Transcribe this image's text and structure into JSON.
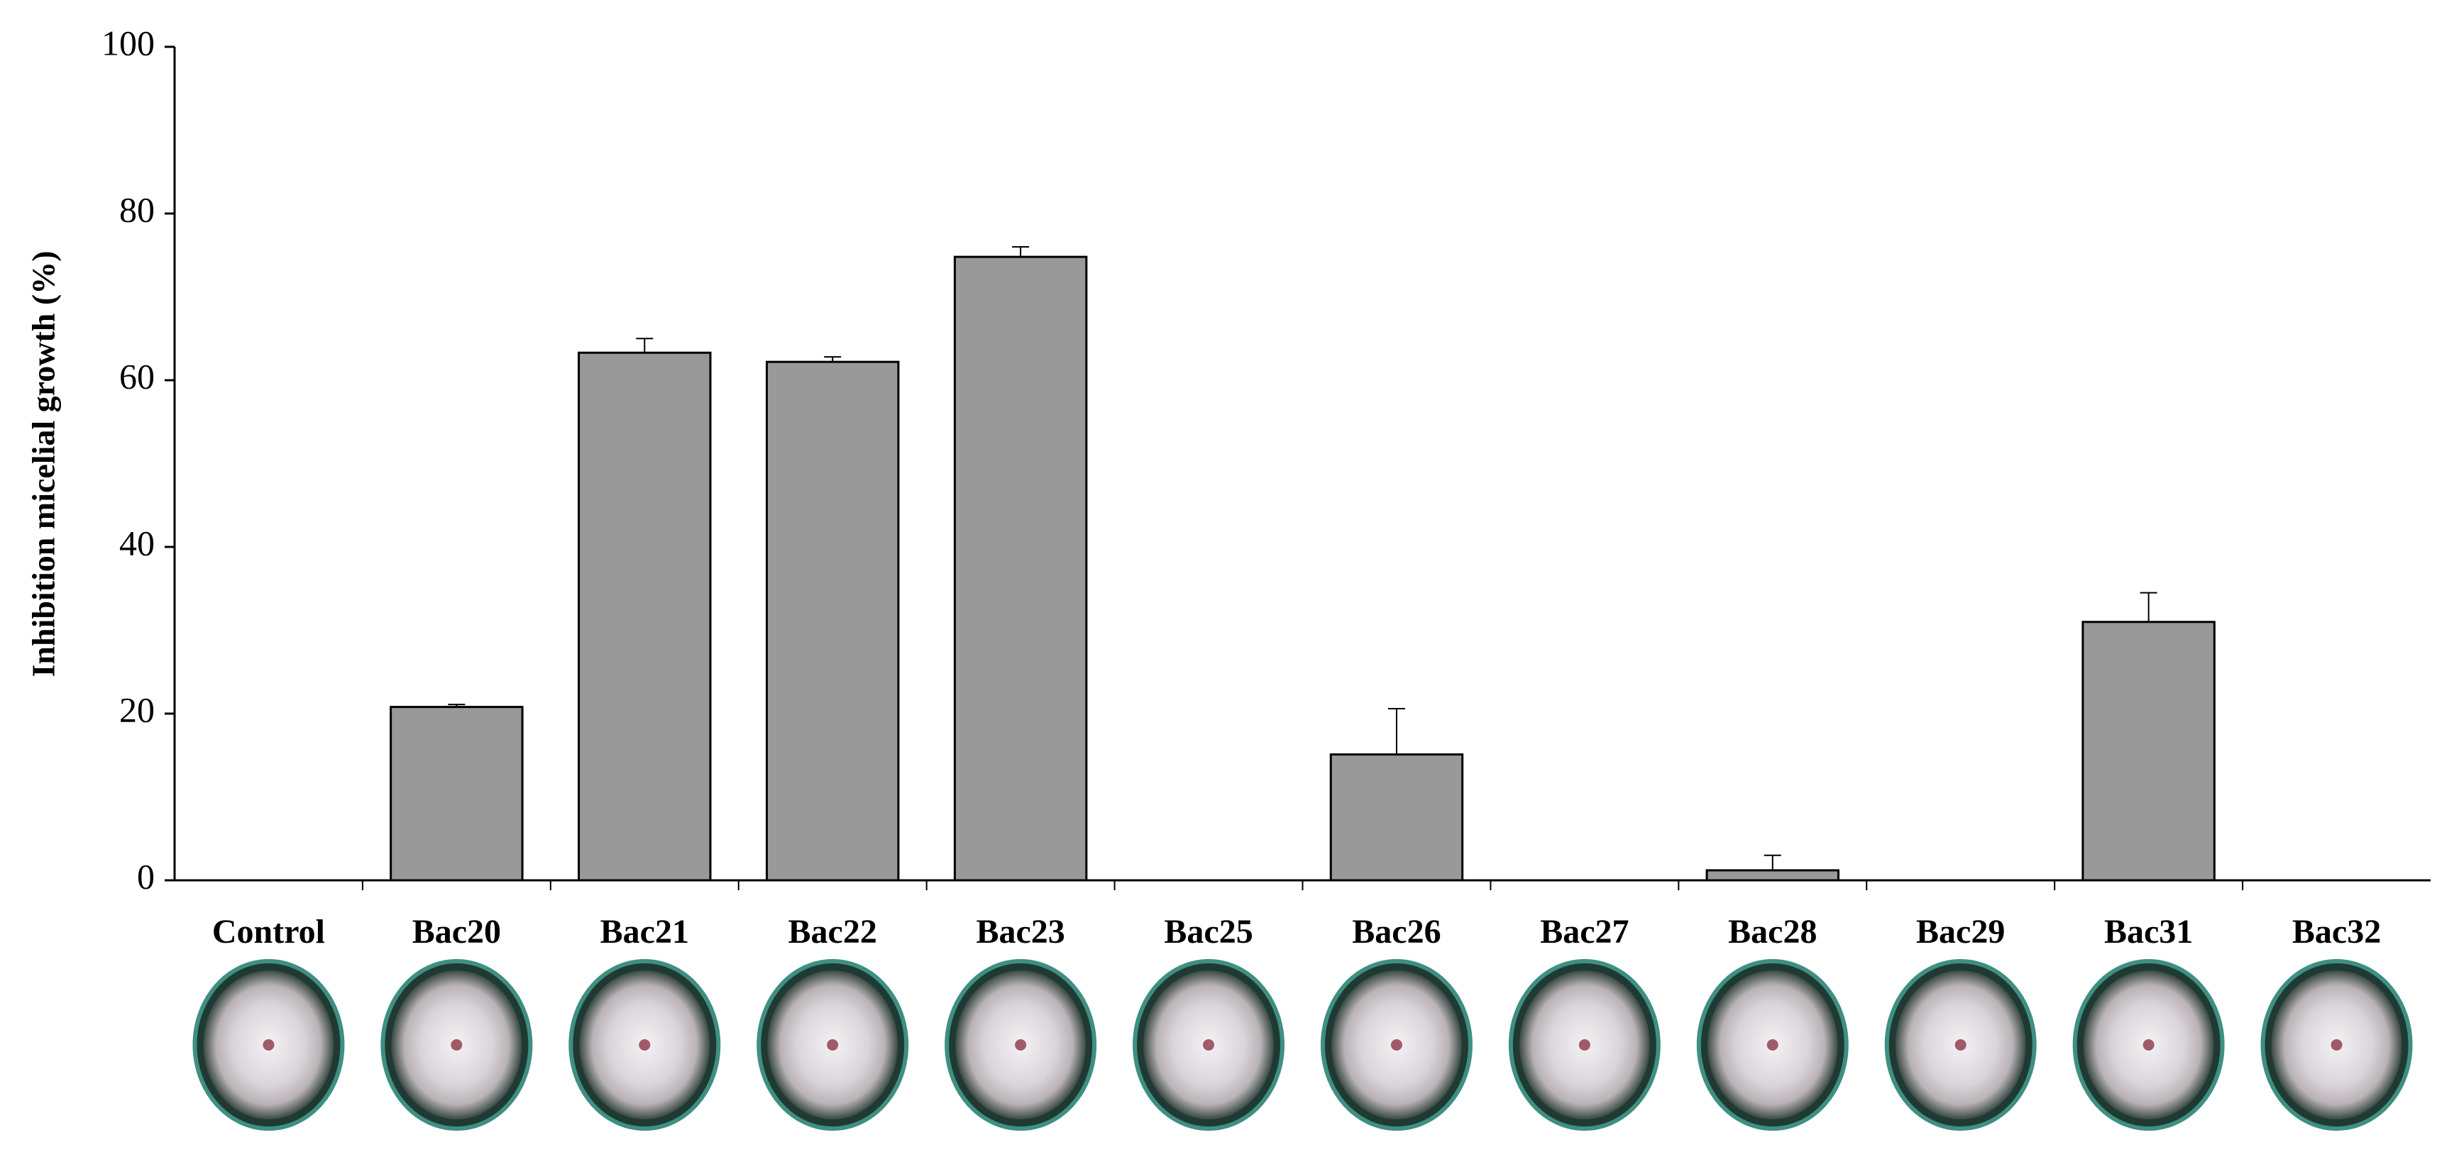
{
  "chart_data": {
    "type": "bar",
    "y_label": "Inhibition micelial growth (%)",
    "categories": [
      "Control",
      "Bac20",
      "Bac21",
      "Bac22",
      "Bac23",
      "Bac25",
      "Bac26",
      "Bac27",
      "Bac28",
      "Bac29",
      "Bac31",
      "Bac32"
    ],
    "values": [
      0,
      20.8,
      63.3,
      62.2,
      74.8,
      0,
      15.1,
      0,
      1.2,
      0,
      31,
      0
    ],
    "errors": [
      0,
      0.3,
      1.7,
      0.6,
      1.2,
      0,
      5.5,
      0,
      1.8,
      0,
      3.5,
      0
    ],
    "color": "#999999",
    "ylim": [
      0,
      100
    ],
    "yticks": [
      0,
      20,
      40,
      60,
      80,
      100
    ],
    "grid": false
  }
}
